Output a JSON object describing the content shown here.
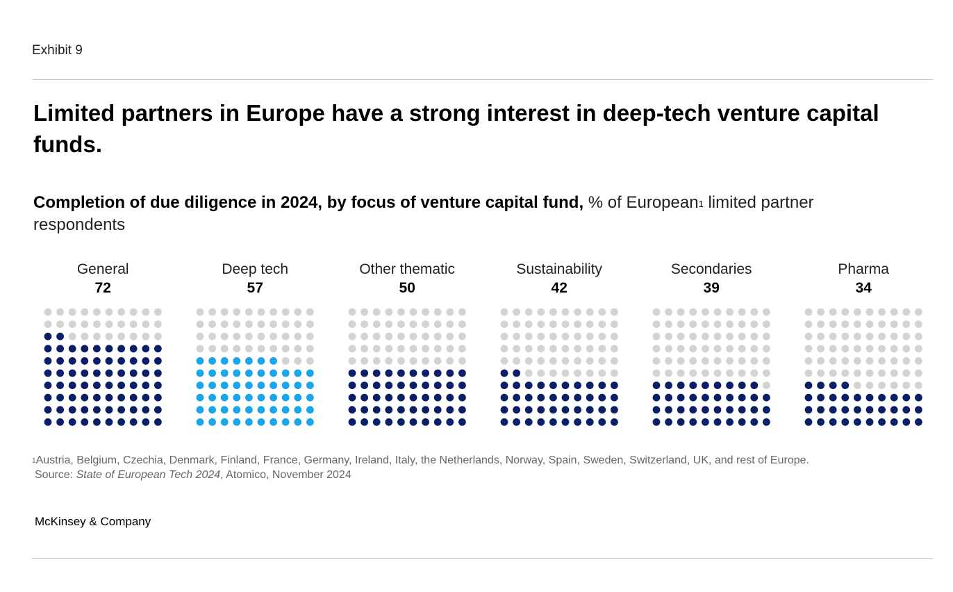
{
  "header": {
    "exhibit": "Exhibit 9",
    "title": "Limited partners in Europe have a strong interest in deep-tech venture capital funds."
  },
  "subtitle": {
    "bold": "Completion of due diligence in 2024, by focus of venture capital fund,",
    "regular": " % of European",
    "sup": "1",
    "rest": " limited partner respondents"
  },
  "colors": {
    "filled": "#0b1f66",
    "highlight": "#1aa6e8",
    "empty": "#d3d3d3"
  },
  "chart_data": {
    "type": "waffle",
    "grid": "10x10",
    "unit": "% of European limited partner respondents",
    "categories": [
      "General",
      "Deep tech",
      "Other thematic",
      "Sustainability",
      "Secondaries",
      "Pharma"
    ],
    "values": [
      72,
      57,
      50,
      42,
      39,
      34
    ],
    "highlight_category": "Deep tech"
  },
  "footer": {
    "footnote_sup": "1",
    "footnote": "Austria, Belgium, Czechia, Denmark, Finland, France, Germany, Ireland, Italy, the Netherlands, Norway, Spain, Sweden, Switzerland, UK, and rest of Europe.",
    "source_prefix": "Source: ",
    "source_title": "State of European Tech 2024",
    "source_rest": ", Atomico, November 2024",
    "brand": "McKinsey & Company"
  }
}
